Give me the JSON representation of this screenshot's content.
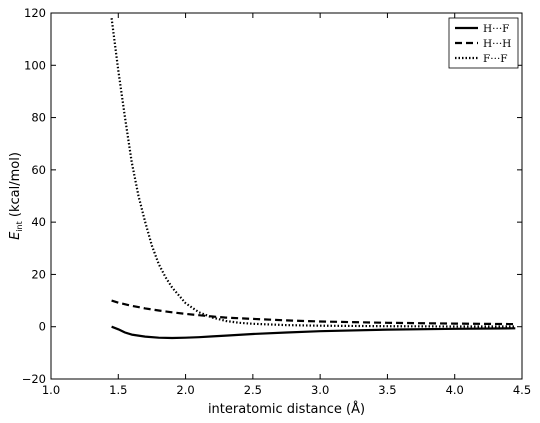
{
  "chart_data": {
    "type": "line",
    "title": "",
    "xlabel": "interatomic distance (Å)",
    "ylabel": "E",
    "ylabel_subscript": "int",
    "ylabel_unit": " (kcal/mol)",
    "xlim": [
      1.0,
      4.5
    ],
    "ylim": [
      -20,
      120
    ],
    "xticks": [
      "1.0",
      "1.5",
      "2.0",
      "2.5",
      "3.0",
      "3.5",
      "4.0",
      "4.5"
    ],
    "yticks": [
      "−20",
      "0",
      "20",
      "40",
      "60",
      "80",
      "100",
      "120"
    ],
    "grid": false,
    "legend_position": "top-right",
    "series": [
      {
        "name": "H···F",
        "style": "solid",
        "color": "#000000",
        "x": [
          1.45,
          1.5,
          1.55,
          1.6,
          1.7,
          1.8,
          1.9,
          2.0,
          2.1,
          2.2,
          2.3,
          2.5,
          2.75,
          3.0,
          3.5,
          4.0,
          4.45
        ],
        "y": [
          0.0,
          -1.0,
          -2.2,
          -3.0,
          -3.8,
          -4.2,
          -4.3,
          -4.2,
          -4.0,
          -3.7,
          -3.4,
          -2.8,
          -2.2,
          -1.7,
          -1.1,
          -0.8,
          -0.6
        ]
      },
      {
        "name": "H···H",
        "style": "dashed",
        "color": "#000000",
        "x": [
          1.45,
          1.5,
          1.6,
          1.7,
          1.8,
          1.9,
          2.0,
          2.1,
          2.2,
          2.3,
          2.5,
          2.75,
          3.0,
          3.5,
          4.0,
          4.45
        ],
        "y": [
          10.0,
          9.2,
          8.0,
          7.0,
          6.2,
          5.5,
          4.9,
          4.4,
          3.9,
          3.5,
          3.0,
          2.4,
          2.0,
          1.5,
          1.2,
          1.0
        ]
      },
      {
        "name": "F···F",
        "style": "dotted",
        "color": "#000000",
        "x": [
          1.45,
          1.5,
          1.55,
          1.6,
          1.65,
          1.7,
          1.75,
          1.8,
          1.85,
          1.9,
          1.95,
          2.0,
          2.1,
          2.2,
          2.3,
          2.4,
          2.5,
          2.75,
          3.0,
          3.5,
          4.0,
          4.45
        ],
        "y": [
          118,
          98,
          80,
          63,
          50,
          40,
          31,
          24,
          19,
          15,
          12,
          9,
          5.5,
          3.5,
          2.2,
          1.5,
          1.1,
          0.6,
          0.4,
          0.2,
          0.1,
          0.1
        ]
      }
    ]
  }
}
